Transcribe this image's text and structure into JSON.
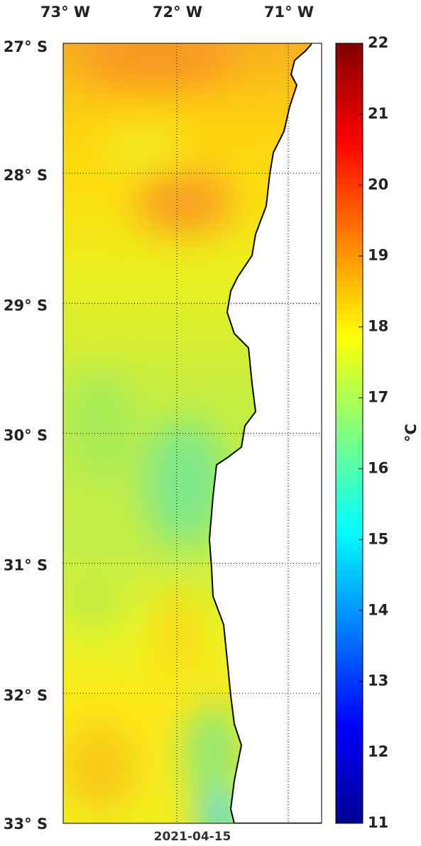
{
  "map": {
    "lon_labels": [
      "73° W",
      "72° W",
      "71° W"
    ],
    "lat_labels": [
      "27° S",
      "28° S",
      "29° S",
      "30° S",
      "31° S",
      "32° S",
      "33° S"
    ],
    "date": "2021-04-15"
  },
  "colorbar": {
    "range": [
      11,
      22
    ],
    "ticks": [
      11,
      12,
      13,
      14,
      15,
      16,
      17,
      18,
      19,
      20,
      21,
      22
    ],
    "unit": "°C"
  }
}
